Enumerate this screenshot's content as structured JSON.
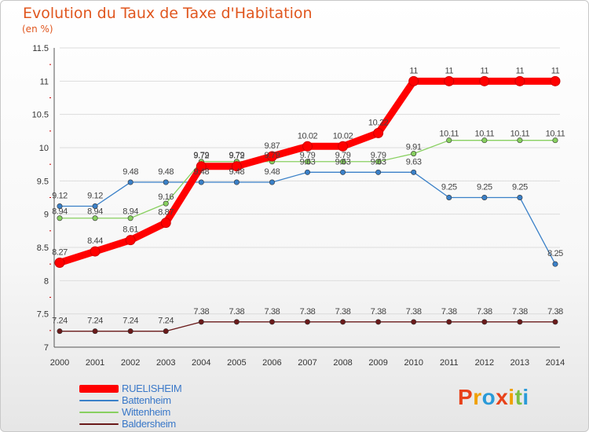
{
  "title": "Evolution du Taux de Taxe d'Habitation",
  "subtitle": "(en %)",
  "chart_data": {
    "type": "line",
    "title": "Evolution du Taux de Taxe d'Habitation",
    "ylabel": "(en %)",
    "xlabel": "",
    "ylim": [
      7,
      11.5
    ],
    "yticks": [
      "7",
      "7.5",
      "8",
      "8.5",
      "9",
      "9.5",
      "10",
      "10.5",
      "11",
      "11.5"
    ],
    "categories": [
      "2000",
      "2001",
      "2002",
      "2003",
      "2004",
      "2005",
      "2006",
      "2007",
      "2008",
      "2009",
      "2010",
      "2011",
      "2012",
      "2013",
      "2014"
    ],
    "series": [
      {
        "name": "RUELISHEIM",
        "color": "#ff0000",
        "values": [
          8.27,
          8.44,
          8.61,
          8.87,
          9.72,
          9.72,
          9.87,
          10.02,
          10.02,
          10.22,
          11,
          11,
          11,
          11,
          11
        ],
        "labels": [
          "8.27",
          "8.44",
          "8.61",
          "8.87",
          "9.72",
          "9.72",
          "9.87",
          "10.02",
          "10.02",
          "10.22",
          "11",
          "11",
          "11",
          "11",
          "11"
        ]
      },
      {
        "name": "Battenheim",
        "color": "#3a80c8",
        "values": [
          9.12,
          9.12,
          9.48,
          9.48,
          9.48,
          9.48,
          9.48,
          9.63,
          9.63,
          9.63,
          9.63,
          9.25,
          9.25,
          9.25,
          8.25
        ],
        "labels": [
          "9.12",
          "9.12",
          "9.48",
          "9.48",
          "9.48",
          "9.48",
          "9.48",
          "9.63",
          "9.63",
          "9.63",
          "9.63",
          "9.25",
          "9.25",
          "9.25",
          "8.25"
        ]
      },
      {
        "name": "Wittenheim",
        "color": "#88d060",
        "values": [
          8.94,
          8.94,
          8.94,
          9.16,
          9.79,
          9.79,
          9.79,
          9.79,
          9.79,
          9.79,
          9.91,
          10.11,
          10.11,
          10.11,
          10.11
        ],
        "labels": [
          "8.94",
          "8.94",
          "8.94",
          "9.16",
          "9.79",
          "9.79",
          "9.79",
          "9.79",
          "9.79",
          "9.79",
          "9.91",
          "10.11",
          "10.11",
          "10.11",
          "10.11"
        ]
      },
      {
        "name": "Baldersheim",
        "color": "#6a1a1a",
        "values": [
          7.24,
          7.24,
          7.24,
          7.24,
          7.38,
          7.38,
          7.38,
          7.38,
          7.38,
          7.38,
          7.38,
          7.38,
          7.38,
          7.38,
          7.38
        ],
        "labels": [
          "7.24",
          "7.24",
          "7.24",
          "7.24",
          "7.38",
          "7.38",
          "7.38",
          "7.38",
          "7.38",
          "7.38",
          "7.38",
          "7.38",
          "7.38",
          "7.38",
          "7.38"
        ]
      }
    ],
    "legend_position": "bottom-left"
  },
  "logo": {
    "text": "Proxiti",
    "colors": [
      "#e8421a",
      "#f0a000",
      "#2a9ad8",
      "#e8421a",
      "#f0a000",
      "#7ac043",
      "#2a9ad8"
    ]
  }
}
